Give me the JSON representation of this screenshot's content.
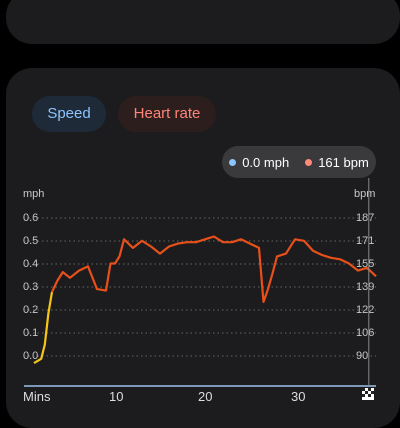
{
  "chips": {
    "speed": "Speed",
    "heart_rate": "Heart rate"
  },
  "tooltip": {
    "speed": "0.0 mph",
    "heart_rate": "161 bpm"
  },
  "colors": {
    "speed": "#8cc4ff",
    "heart_rate": "#ff8a7a",
    "line_orange": "#e8501a",
    "line_yellow": "#f5c518"
  },
  "chart_data": {
    "type": "line",
    "left_unit": "mph",
    "right_unit": "bpm",
    "left_ticks": [
      "0.6",
      "0.5",
      "0.4",
      "0.3",
      "0.2",
      "0.1",
      "0.0"
    ],
    "right_ticks": [
      "187",
      "171",
      "155",
      "139",
      "122",
      "106",
      "90"
    ],
    "x_ticks": [
      "Mins",
      "10",
      "20",
      "30"
    ],
    "xlim": [
      0,
      38
    ],
    "ylim_left": [
      0,
      0.6
    ],
    "ylim_right": [
      90,
      187
    ],
    "grid": true,
    "series": [
      {
        "name": "Heart rate",
        "axis": "right",
        "x": [
          0,
          0.8,
          1.2,
          1.6,
          2,
          2.6,
          3.2,
          4,
          5,
          6,
          7,
          8,
          8.5,
          9,
          9.5,
          10,
          11,
          12,
          13,
          14,
          15,
          16,
          17,
          18,
          19,
          20,
          21,
          22,
          23,
          24,
          25,
          25.5,
          26,
          26.5,
          27,
          28,
          29,
          30,
          31,
          32,
          33,
          34,
          35,
          36,
          37,
          38
        ],
        "y": [
          85,
          88,
          98,
          120,
          135,
          143,
          149,
          145,
          150,
          153,
          137,
          136,
          155,
          155,
          160,
          172,
          166,
          171,
          167,
          162,
          167,
          169,
          170,
          170,
          172,
          174,
          170,
          170,
          172,
          169,
          166,
          128,
          137,
          148,
          160,
          162,
          172,
          171,
          164,
          161,
          159,
          158,
          155,
          150,
          152,
          146
        ]
      },
      {
        "name": "Speed",
        "axis": "left",
        "x": [
          37.2
        ],
        "y": [
          0.0
        ]
      }
    ]
  }
}
